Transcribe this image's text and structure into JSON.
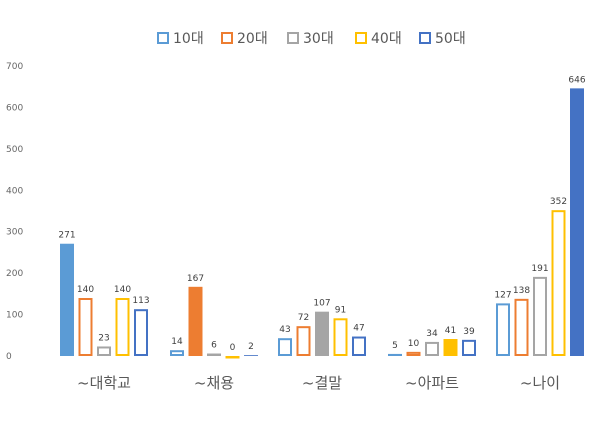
{
  "chart_data": {
    "type": "bar",
    "title": "",
    "xlabel": "",
    "ylabel": "",
    "ylim": [
      0,
      700
    ],
    "yticks": [
      0,
      100,
      200,
      300,
      400,
      500,
      600,
      700
    ],
    "grid": false,
    "legend_position": "top",
    "categories": [
      "~대학교",
      "~채용",
      "~결말",
      "~아파트",
      "~나이"
    ],
    "series": [
      {
        "name": "10대",
        "color": "#5B9BD5",
        "values": [
          271,
          14,
          43,
          5,
          127
        ],
        "filled": [
          true,
          false,
          false,
          true,
          false
        ]
      },
      {
        "name": "20대",
        "color": "#ED7D31",
        "values": [
          140,
          167,
          72,
          10,
          138
        ],
        "filled": [
          false,
          true,
          false,
          false,
          false
        ]
      },
      {
        "name": "30대",
        "color": "#A5A5A5",
        "values": [
          23,
          6,
          107,
          34,
          191
        ],
        "filled": [
          false,
          true,
          true,
          false,
          false
        ]
      },
      {
        "name": "40대",
        "color": "#FFC000",
        "values": [
          140,
          0,
          91,
          41,
          352
        ],
        "filled": [
          false,
          false,
          false,
          true,
          false
        ]
      },
      {
        "name": "50대",
        "color": "#4472C4",
        "values": [
          113,
          2,
          47,
          39,
          646
        ],
        "filled": [
          false,
          true,
          false,
          false,
          true
        ]
      }
    ]
  }
}
